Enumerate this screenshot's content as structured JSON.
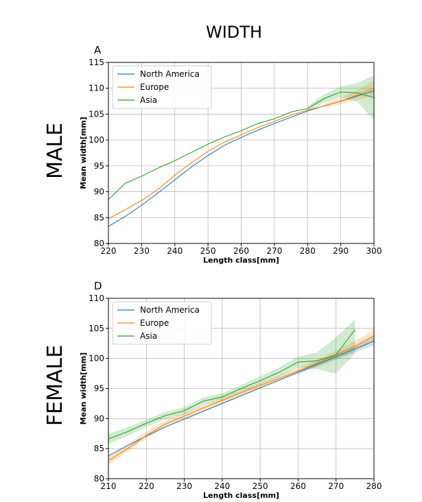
{
  "figure": {
    "title": "WIDTH",
    "row_labels": [
      "MALE",
      "FEMALE"
    ]
  },
  "colors": {
    "North America": "#1f77b4",
    "Europe": "#ff7f0e",
    "Asia": "#2ca02c",
    "Asia_band": "#2ca02c"
  },
  "chart_data": [
    {
      "type": "line",
      "panel": "A",
      "title": "",
      "xlabel": "Length class[mm]",
      "ylabel": "Mean width[mm]",
      "xlim": [
        220,
        300
      ],
      "ylim": [
        80,
        115
      ],
      "xticks": [
        220,
        230,
        240,
        250,
        260,
        270,
        280,
        290,
        300
      ],
      "yticks": [
        80,
        85,
        90,
        95,
        100,
        105,
        110,
        115
      ],
      "grid": true,
      "legend": "top-left",
      "series": [
        {
          "name": "North America",
          "x": [
            220,
            225,
            230,
            235,
            240,
            245,
            250,
            255,
            260,
            265,
            270,
            275,
            280,
            285,
            290,
            295,
            300
          ],
          "y": [
            83.3,
            85.2,
            87.4,
            89.8,
            92.3,
            94.8,
            97.0,
            99.0,
            100.5,
            101.9,
            103.2,
            104.4,
            105.6,
            106.6,
            107.5,
            108.5,
            109.5
          ]
        },
        {
          "name": "Europe",
          "x": [
            220,
            225,
            230,
            235,
            240,
            245,
            250,
            255,
            260,
            265,
            270,
            275,
            280,
            285,
            290,
            295,
            300
          ],
          "y": [
            84.8,
            86.5,
            88.3,
            90.5,
            93.2,
            95.6,
            97.8,
            99.6,
            101.0,
            102.4,
            103.6,
            104.8,
            105.8,
            106.6,
            107.5,
            108.7,
            110.0
          ],
          "band": {
            "lower_x": [
              285,
              290,
              295,
              300
            ],
            "lower": [
              106.2,
              106.9,
              107.8,
              108.5
            ],
            "upper_x": [
              285,
              290,
              295,
              300
            ],
            "upper": [
              107.0,
              108.2,
              109.6,
              111.5
            ]
          }
        },
        {
          "name": "Asia",
          "x": [
            220,
            225,
            230,
            235,
            240,
            245,
            250,
            255,
            260,
            265,
            270,
            275,
            280,
            285,
            290,
            295,
            300
          ],
          "y": [
            88.5,
            91.6,
            93.0,
            94.6,
            96.0,
            97.6,
            99.2,
            100.6,
            101.8,
            103.2,
            104.1,
            105.4,
            106.1,
            108.0,
            109.3,
            109.1,
            108.2
          ],
          "band": {
            "lower_x": [
              280,
              285,
              290,
              295,
              300
            ],
            "lower": [
              105.7,
              107.2,
              108.3,
              107.4,
              103.8
            ],
            "upper_x": [
              280,
              285,
              290,
              295,
              300
            ],
            "upper": [
              106.5,
              108.8,
              110.4,
              111.0,
              112.5
            ]
          }
        }
      ]
    },
    {
      "type": "line",
      "panel": "D",
      "title": "",
      "xlabel": "Length class[mm]",
      "ylabel": "Mean width[mm]",
      "xlim": [
        210,
        280
      ],
      "ylim": [
        80,
        110
      ],
      "xticks": [
        210,
        220,
        230,
        240,
        250,
        260,
        270,
        280
      ],
      "yticks": [
        80,
        85,
        90,
        95,
        100,
        105,
        110
      ],
      "grid": true,
      "legend": "top-left",
      "series": [
        {
          "name": "North America",
          "x": [
            210,
            215,
            220,
            225,
            230,
            235,
            240,
            245,
            250,
            255,
            260,
            265,
            270,
            275,
            280
          ],
          "y": [
            83.8,
            85.5,
            87.1,
            88.6,
            89.9,
            91.2,
            92.5,
            93.8,
            95.1,
            96.4,
            97.7,
            99.0,
            100.3,
            101.6,
            102.9
          ],
          "band": {
            "lower_x": [
              260,
              265,
              270,
              275,
              280
            ],
            "lower": [
              97.4,
              98.6,
              99.8,
              101.0,
              102.2
            ],
            "upper_x": [
              260,
              265,
              270,
              275,
              280
            ],
            "upper": [
              98.0,
              99.4,
              100.8,
              102.2,
              103.6
            ]
          }
        },
        {
          "name": "Europe",
          "x": [
            210,
            215,
            220,
            225,
            230,
            235,
            240,
            245,
            250,
            255,
            260,
            265,
            270,
            275,
            280
          ],
          "y": [
            83.0,
            85.0,
            87.2,
            89.1,
            90.4,
            91.8,
            93.0,
            94.3,
            95.5,
            96.7,
            97.9,
            99.2,
            100.6,
            102.0,
            103.8
          ],
          "band": {
            "lower_x": [
              210,
              215,
              220,
              225,
              260,
              265,
              270,
              275,
              280
            ],
            "lower": [
              82.3,
              84.4,
              86.7,
              88.6,
              97.5,
              98.7,
              100.0,
              101.2,
              102.8
            ],
            "upper_x": [
              210,
              215,
              220,
              225,
              260,
              265,
              270,
              275,
              280
            ],
            "upper": [
              83.8,
              85.7,
              87.8,
              89.7,
              98.4,
              99.8,
              101.3,
              102.9,
              104.8
            ]
          }
        },
        {
          "name": "Asia",
          "x": [
            210,
            215,
            220,
            225,
            230,
            235,
            240,
            245,
            250,
            255,
            260,
            265,
            270,
            275
          ],
          "y": [
            86.6,
            87.8,
            89.2,
            90.5,
            91.3,
            92.9,
            93.6,
            95.0,
            96.3,
            97.7,
            99.4,
            99.6,
            100.6,
            104.8
          ],
          "band": {
            "lower_x": [
              210,
              215,
              220,
              225,
              230,
              235,
              240,
              245,
              250,
              255,
              260,
              265,
              270,
              275
            ],
            "lower": [
              85.8,
              87.1,
              88.6,
              89.9,
              90.7,
              92.3,
              93.0,
              94.4,
              95.6,
              96.9,
              98.5,
              98.2,
              97.5,
              100.8
            ],
            "upper_x": [
              210,
              215,
              220,
              225,
              230,
              235,
              240,
              245,
              250,
              255,
              260,
              265,
              270,
              275
            ],
            "upper": [
              87.5,
              88.5,
              89.8,
              91.1,
              91.9,
              93.5,
              94.2,
              95.6,
              97.0,
              98.5,
              100.3,
              101.0,
              103.5,
              106.5
            ]
          }
        }
      ]
    }
  ]
}
